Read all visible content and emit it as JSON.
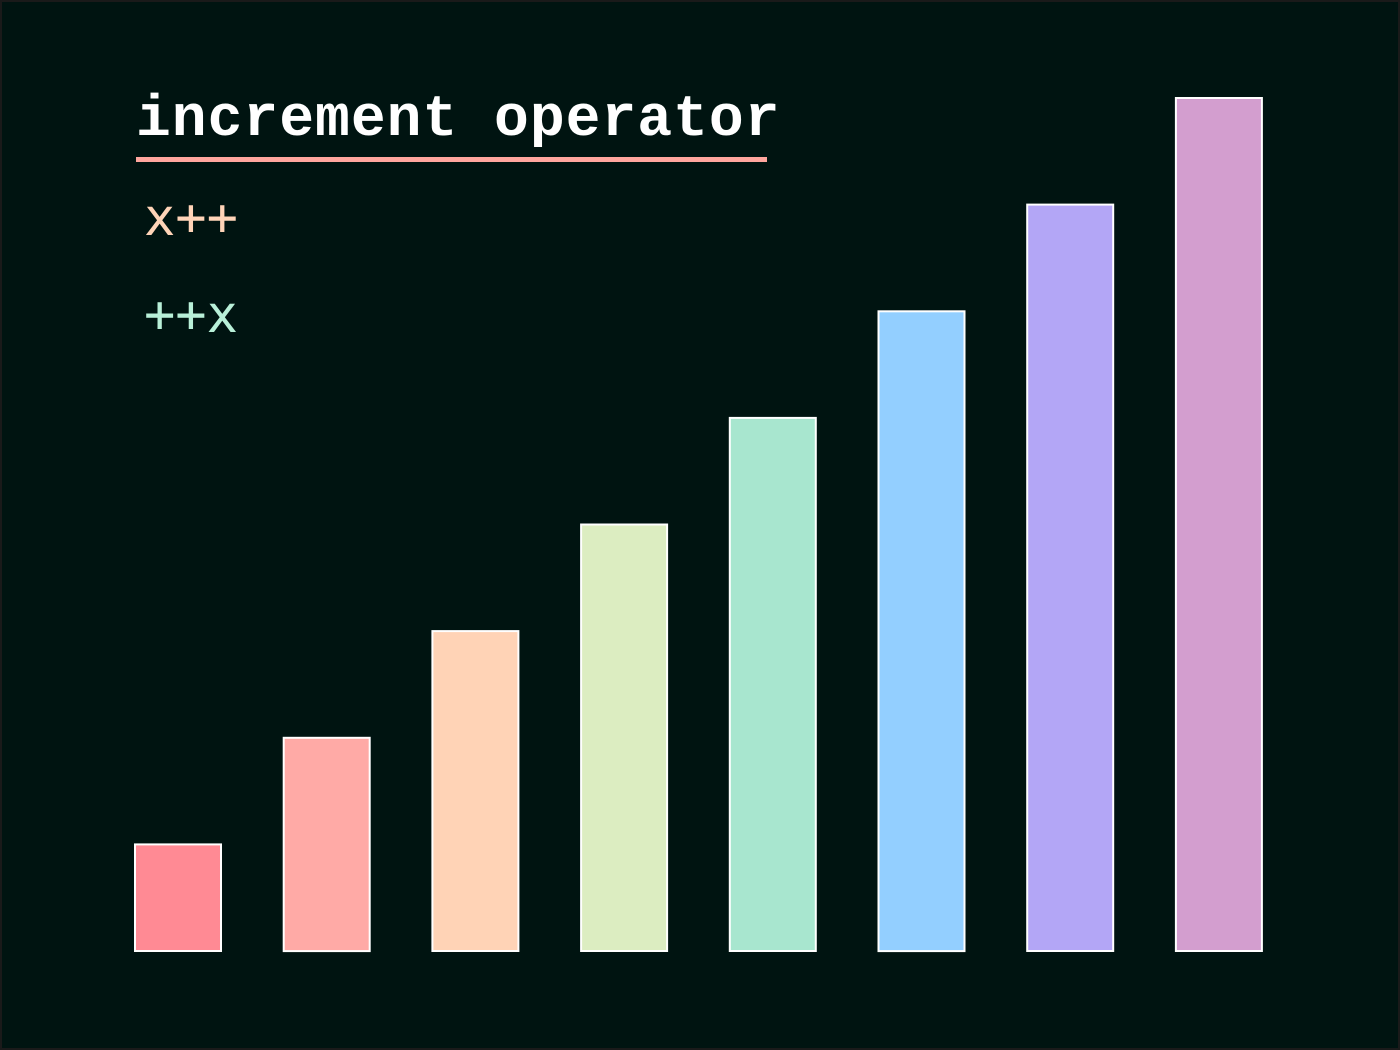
{
  "title": "increment operator",
  "code_lines": [
    "x++",
    "++x"
  ],
  "colors": {
    "background": "#001411",
    "underline": "#ffa69e",
    "code_1": "#ffd4b8",
    "code_2": "#b8f0d8",
    "bar_stroke": "#ffffff"
  },
  "bars": {
    "values": [
      1,
      2,
      3,
      4,
      5,
      6,
      7,
      8
    ],
    "colors": [
      "#ff8a94",
      "#ffaaa6",
      "#ffd3b6",
      "#dcedc1",
      "#a8e6cf",
      "#93cfff",
      "#b3a6f6",
      "#d39ecf"
    ]
  }
}
